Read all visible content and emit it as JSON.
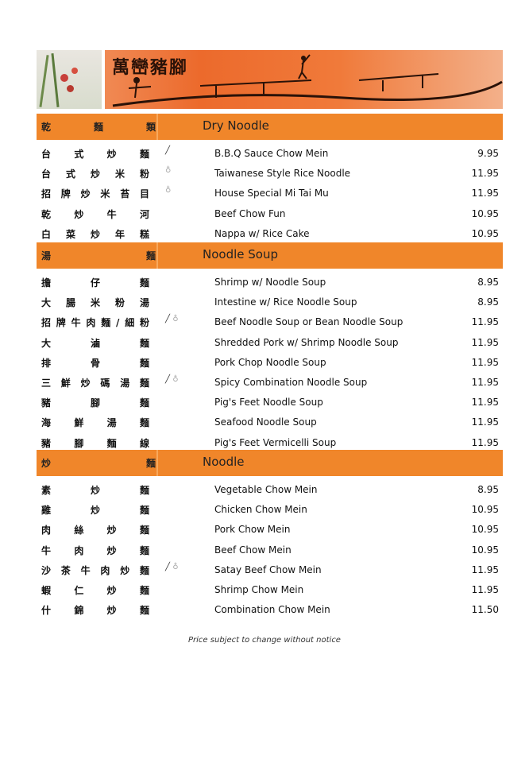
{
  "banner": {
    "title": "萬巒豬腳"
  },
  "icons": {
    "chili": "chili-icon",
    "thumb": "thumbs-up-icon"
  },
  "colors": {
    "section_bar": "#f0862a"
  },
  "sections": [
    {
      "zh": "乾麵類",
      "en": "Dry Noodle",
      "items": [
        {
          "zh": "台式炒麵",
          "en": "B.B.Q Sauce Chow Mein",
          "price": "9.95",
          "chili": true,
          "thumb": false
        },
        {
          "zh": "台式炒米粉",
          "en": "Taiwanese Style Rice Noodle",
          "price": "11.95",
          "chili": false,
          "thumb": true
        },
        {
          "zh": "招牌炒米苔目",
          "en": "House Special Mi Tai Mu",
          "price": "11.95",
          "chili": false,
          "thumb": true
        },
        {
          "zh": "乾炒牛河",
          "en": "Beef Chow Fun",
          "price": "10.95",
          "chili": false,
          "thumb": false
        },
        {
          "zh": "白菜炒年糕",
          "en": "Nappa w/ Rice Cake",
          "price": "10.95",
          "chili": false,
          "thumb": false
        }
      ]
    },
    {
      "zh": "湯麵",
      "en": "Noodle Soup",
      "items": [
        {
          "zh": "擔仔麵",
          "en": "Shrimp w/ Noodle Soup",
          "price": "8.95",
          "chili": false,
          "thumb": false
        },
        {
          "zh": "大腸米粉湯",
          "en": "Intestine w/ Rice Noodle Soup",
          "price": "8.95",
          "chili": false,
          "thumb": false
        },
        {
          "zh": "招牌牛肉麵/細粉",
          "en": "Beef Noodle Soup or Bean Noodle Soup",
          "price": "11.95",
          "chili": true,
          "thumb": true
        },
        {
          "zh": "大滷麵",
          "en": "Shredded Pork w/ Shrimp Noodle Soup",
          "price": "11.95",
          "chili": false,
          "thumb": false
        },
        {
          "zh": "排骨麵",
          "en": "Pork Chop Noodle Soup",
          "price": "11.95",
          "chili": false,
          "thumb": false
        },
        {
          "zh": "三鮮炒碼湯麵",
          "en": "Spicy Combination Noodle Soup",
          "price": "11.95",
          "chili": true,
          "thumb": true
        },
        {
          "zh": "豬腳麵",
          "en": "Pig's Feet Noodle Soup",
          "price": "11.95",
          "chili": false,
          "thumb": false
        },
        {
          "zh": "海鮮湯麵",
          "en": "Seafood Noodle Soup",
          "price": "11.95",
          "chili": false,
          "thumb": false
        },
        {
          "zh": "豬腳麵線",
          "en": "Pig's Feet Vermicelli Soup",
          "price": "11.95",
          "chili": false,
          "thumb": false
        }
      ]
    },
    {
      "zh": "炒麵",
      "en": "Noodle",
      "items": [
        {
          "zh": "素炒麵",
          "en": "Vegetable Chow Mein",
          "price": "8.95",
          "chili": false,
          "thumb": false
        },
        {
          "zh": "雞炒麵",
          "en": "Chicken Chow Mein",
          "price": "10.95",
          "chili": false,
          "thumb": false
        },
        {
          "zh": "肉絲炒麵",
          "en": "Pork Chow Mein",
          "price": "10.95",
          "chili": false,
          "thumb": false
        },
        {
          "zh": "牛肉炒麵",
          "en": "Beef Chow Mein",
          "price": "10.95",
          "chili": false,
          "thumb": false
        },
        {
          "zh": "沙茶牛肉炒麵",
          "en": "Satay Beef Chow Mein",
          "price": "11.95",
          "chili": true,
          "thumb": true
        },
        {
          "zh": "蝦仁炒麵",
          "en": "Shrimp Chow Mein",
          "price": "11.95",
          "chili": false,
          "thumb": false
        },
        {
          "zh": "什錦炒麵",
          "en": "Combination Chow Mein",
          "price": "11.50",
          "chili": false,
          "thumb": false
        }
      ]
    }
  ],
  "footer": {
    "note": "Price subject to change without notice"
  }
}
